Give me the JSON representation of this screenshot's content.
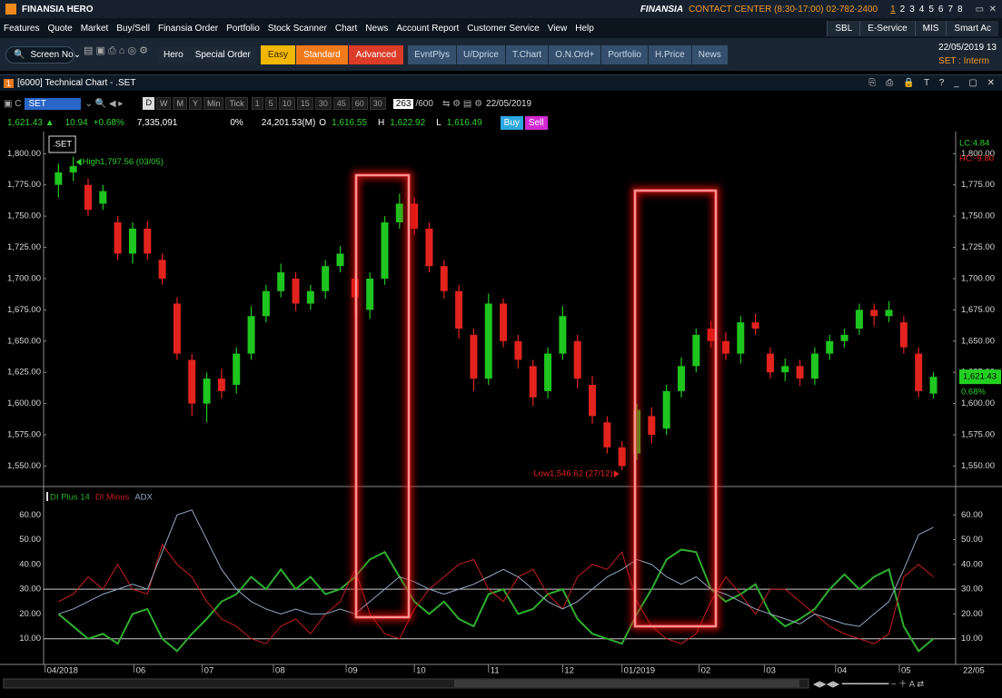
{
  "app": {
    "title_bar": {
      "app_name": "FINANSIA  HERO",
      "brand": "FINANSIA",
      "contact": "CONTACT CENTER (8:30-17:00) 02-782-2400",
      "screens": [
        "1",
        "2",
        "3",
        "4",
        "5",
        "6",
        "7",
        "8"
      ]
    },
    "menu": [
      "Features",
      "Quote",
      "Market",
      "Buy/Sell",
      "Finansia Order",
      "Portfolio",
      "Stock Scanner",
      "Chart",
      "News",
      "Account Report",
      "Customer Service",
      "View",
      "Help"
    ],
    "menu_right": [
      "SBL",
      "E-Service",
      "MIS",
      "Smart Ac"
    ],
    "toolbar": {
      "screen_no": "Screen No",
      "hero": "Hero",
      "special_order": "Special Order",
      "modes": [
        "Easy",
        "Standard",
        "Advanced"
      ],
      "buttons": [
        "EvntPlys",
        "U/Dprice",
        "T.Chart",
        "O.N.Ord+",
        "Portfolio",
        "H.Price",
        "News"
      ],
      "datetime": "22/05/2019 13",
      "market_status": "SET : Interm"
    },
    "window_title": "[6000] Technical Chart - .SET",
    "chart_toolbar": {
      "symbol": "SET",
      "periods": [
        "D",
        "W",
        "M",
        "Y",
        "Min",
        "Tick"
      ],
      "intervals": [
        "1",
        "5",
        "10",
        "15",
        "30",
        "45",
        "60",
        "30"
      ],
      "bars": "263",
      "max_bars": "/600",
      "date": "22/05/2019"
    },
    "quote": {
      "last": "1,621.43 ▲",
      "change": "10.94",
      "change_pct": "+0.68%",
      "volume": "7,335,091",
      "pct": "0%",
      "value": "24,201.53(M)",
      "open_label": "O",
      "open": "1,616.55",
      "high_label": "H",
      "high": "1,622.92",
      "low_label": "L",
      "low": "1,616.49",
      "buy": "Buy",
      "sell": "Sell"
    }
  },
  "chart_data": [
    {
      "type": "candlestick",
      "symbol_label": ".SET",
      "x": [
        0,
        1,
        2,
        3,
        4,
        5,
        6,
        7,
        8,
        9,
        10,
        11,
        12,
        13,
        14,
        15,
        16,
        17,
        18,
        19,
        20,
        21,
        22,
        23,
        24,
        25,
        26,
        27,
        28,
        29,
        30,
        31,
        32,
        33,
        34,
        35,
        36,
        37,
        38,
        39,
        40,
        41,
        42,
        43,
        44,
        45,
        46,
        47,
        48,
        49,
        50,
        51,
        52,
        53,
        54,
        55,
        56,
        57,
        58,
        59
      ],
      "open": [
        1775,
        1785,
        1775,
        1760,
        1745,
        1720,
        1740,
        1715,
        1680,
        1635,
        1600,
        1620,
        1615,
        1640,
        1670,
        1690,
        1700,
        1680,
        1690,
        1710,
        1700,
        1675,
        1700,
        1745,
        1760,
        1740,
        1710,
        1690,
        1655,
        1620,
        1680,
        1650,
        1630,
        1610,
        1640,
        1650,
        1615,
        1585,
        1565,
        1560,
        1590,
        1580,
        1610,
        1630,
        1660,
        1650,
        1640,
        1665,
        1640,
        1625,
        1630,
        1620,
        1640,
        1650,
        1660,
        1675,
        1670,
        1665,
        1640,
        1608
      ],
      "high": [
        1792,
        1797.56,
        1780,
        1775,
        1750,
        1745,
        1746,
        1720,
        1685,
        1640,
        1625,
        1628,
        1645,
        1678,
        1695,
        1712,
        1705,
        1695,
        1715,
        1726,
        1705,
        1705,
        1750,
        1768,
        1765,
        1745,
        1715,
        1695,
        1660,
        1688,
        1684,
        1655,
        1635,
        1645,
        1678,
        1655,
        1622,
        1590,
        1570,
        1600,
        1597,
        1615,
        1637,
        1660,
        1666,
        1657,
        1670,
        1672,
        1645,
        1636,
        1635,
        1645,
        1655,
        1660,
        1680,
        1680,
        1682,
        1670,
        1645,
        1625
      ],
      "low": [
        1765,
        1778,
        1750,
        1755,
        1715,
        1712,
        1715,
        1695,
        1635,
        1590,
        1585,
        1604,
        1608,
        1635,
        1665,
        1685,
        1674,
        1675,
        1684,
        1705,
        1668,
        1668,
        1695,
        1740,
        1735,
        1705,
        1684,
        1652,
        1610,
        1615,
        1645,
        1628,
        1598,
        1604,
        1635,
        1612,
        1584,
        1560,
        1546.62,
        1555,
        1568,
        1575,
        1605,
        1625,
        1645,
        1635,
        1632,
        1655,
        1620,
        1618,
        1614,
        1615,
        1635,
        1645,
        1655,
        1662,
        1665,
        1640,
        1605,
        1604
      ],
      "close": [
        1785,
        1790,
        1755,
        1770,
        1720,
        1740,
        1720,
        1700,
        1640,
        1600,
        1620,
        1610,
        1640,
        1670,
        1690,
        1705,
        1680,
        1690,
        1710,
        1720,
        1685,
        1700,
        1745,
        1760,
        1740,
        1710,
        1690,
        1660,
        1620,
        1680,
        1650,
        1635,
        1605,
        1640,
        1670,
        1620,
        1590,
        1565,
        1550,
        1595,
        1575,
        1610,
        1630,
        1655,
        1650,
        1640,
        1665,
        1660,
        1625,
        1630,
        1620,
        1640,
        1650,
        1655,
        1675,
        1670,
        1675,
        1645,
        1610,
        1621.43
      ],
      "up_color": "#1fc51f",
      "down_color": "#e3231d",
      "xlim": [
        -1,
        60.5
      ],
      "ylim": [
        1538,
        1814
      ],
      "yticks": [
        {
          "value": 1550,
          "label": "1,550.00"
        },
        {
          "value": 1575,
          "label": "1,575.00"
        },
        {
          "value": 1600,
          "label": "1,600.00"
        },
        {
          "value": 1625,
          "label": "1,625.00"
        },
        {
          "value": 1650,
          "label": "1,650.00"
        },
        {
          "value": 1675,
          "label": "1,675.00"
        },
        {
          "value": 1700,
          "label": "1,700.00"
        },
        {
          "value": 1725,
          "label": "1,725.00"
        },
        {
          "value": 1750,
          "label": "1,750.00"
        },
        {
          "value": 1775,
          "label": "1,775.00"
        },
        {
          "value": 1800,
          "label": "1,800.00"
        }
      ],
      "annotations": [
        {
          "text": "High1,797.56 (03/05)",
          "at": 1
        },
        {
          "text": "Low1,546.62 (27/12)",
          "at": 38
        }
      ],
      "lc": "LC:4.84",
      "hc": "HC:-9.80",
      "last_price": "1,621.43",
      "last_change": "0.68%"
    },
    {
      "type": "line",
      "x": [
        0,
        1,
        2,
        3,
        4,
        5,
        6,
        7,
        8,
        9,
        10,
        11,
        12,
        13,
        14,
        15,
        16,
        17,
        18,
        19,
        20,
        21,
        22,
        23,
        24,
        25,
        26,
        27,
        28,
        29,
        30,
        31,
        32,
        33,
        34,
        35,
        36,
        37,
        38,
        39,
        40,
        41,
        42,
        43,
        44,
        45,
        46,
        47,
        48,
        49,
        50,
        51,
        52,
        53,
        54,
        55,
        56,
        57,
        58,
        59
      ],
      "series": [
        {
          "name": "DI Plus 14",
          "color": "#2fae2f",
          "values": [
            20,
            15,
            10,
            12,
            8,
            20,
            22,
            10,
            5,
            12,
            18,
            25,
            28,
            35,
            30,
            38,
            30,
            35,
            28,
            30,
            35,
            42,
            45,
            35,
            25,
            20,
            25,
            18,
            15,
            28,
            30,
            20,
            22,
            28,
            30,
            18,
            12,
            10,
            8,
            20,
            30,
            42,
            46,
            45,
            30,
            25,
            28,
            32,
            20,
            15,
            18,
            22,
            30,
            36,
            30,
            35,
            38,
            15,
            5,
            10
          ]
        },
        {
          "name": "DI Minus",
          "color": "#c61e1e",
          "values": [
            25,
            28,
            35,
            30,
            40,
            30,
            28,
            48,
            40,
            35,
            25,
            18,
            15,
            10,
            8,
            15,
            18,
            12,
            20,
            25,
            38,
            20,
            12,
            10,
            22,
            30,
            35,
            40,
            42,
            30,
            25,
            35,
            38,
            28,
            22,
            35,
            40,
            38,
            45,
            25,
            15,
            10,
            8,
            12,
            25,
            35,
            28,
            20,
            30,
            30,
            25,
            20,
            15,
            12,
            10,
            8,
            12,
            35,
            40,
            35
          ]
        },
        {
          "name": "ADX",
          "color": "#93a8c6",
          "values": [
            20,
            22,
            25,
            28,
            30,
            32,
            30,
            45,
            60,
            62,
            50,
            38,
            30,
            25,
            22,
            20,
            22,
            20,
            20,
            22,
            20,
            25,
            30,
            35,
            33,
            30,
            28,
            30,
            32,
            35,
            38,
            35,
            30,
            25,
            22,
            25,
            30,
            35,
            38,
            42,
            40,
            35,
            32,
            35,
            30,
            28,
            25,
            22,
            20,
            18,
            16,
            20,
            18,
            16,
            15,
            20,
            25,
            38,
            52,
            55
          ]
        }
      ],
      "ylim": [
        0,
        70
      ],
      "yticks": [
        {
          "value": 10,
          "label": "10.00"
        },
        {
          "value": 20,
          "label": "20.00"
        },
        {
          "value": 30,
          "label": "30.00"
        },
        {
          "value": 40,
          "label": "40.00"
        },
        {
          "value": 50,
          "label": "50.00"
        },
        {
          "value": 60,
          "label": "60.00"
        }
      ],
      "reference_lines": [
        10,
        30
      ],
      "xlim": [
        -1,
        60.5
      ],
      "xticks": [
        {
          "value": -0.9,
          "label": "04/2018"
        },
        {
          "value": 5.1,
          "label": "06"
        },
        {
          "value": 9.7,
          "label": "07"
        },
        {
          "value": 14.5,
          "label": "08"
        },
        {
          "value": 19.4,
          "label": "09"
        },
        {
          "value": 24,
          "label": "10"
        },
        {
          "value": 29,
          "label": "11"
        },
        {
          "value": 34,
          "label": "12"
        },
        {
          "value": 38,
          "label": "01/2019"
        },
        {
          "value": 43.2,
          "label": "02"
        },
        {
          "value": 47.6,
          "label": "03"
        },
        {
          "value": 52.4,
          "label": "04"
        },
        {
          "value": 56.7,
          "label": "05"
        }
      ],
      "x_end_label": "22/05"
    }
  ]
}
